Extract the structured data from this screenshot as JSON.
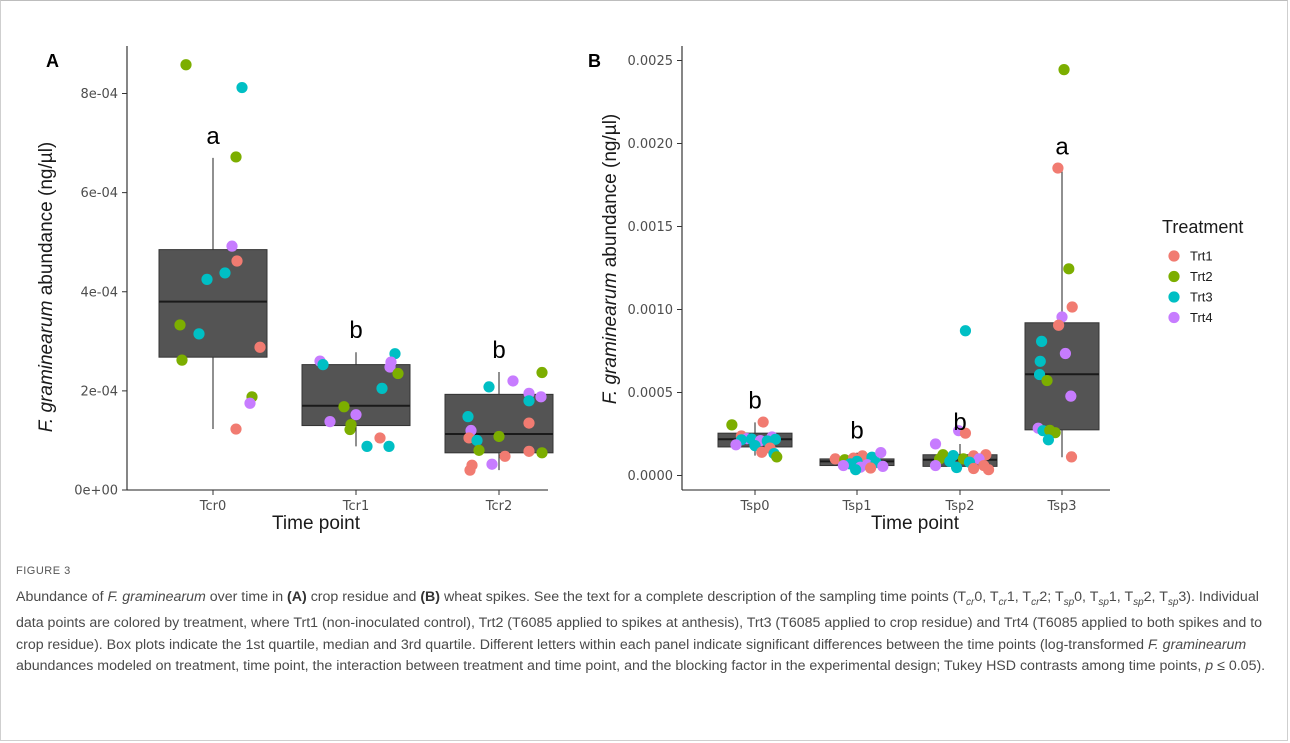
{
  "chart_data": [
    {
      "type": "box",
      "panel_label": "A",
      "ylabel_italic": "F. graminearum",
      "ylabel_rest": " abundance (ng/µl)",
      "xlabel": "Time point",
      "ylim": [
        0,
        0.0009
      ],
      "yticks": [
        0,
        0.0002,
        0.0004,
        0.0006,
        0.0008
      ],
      "ytick_labels": [
        "0e+00",
        "2e-04",
        "4e-04",
        "6e-04",
        "8e-04"
      ],
      "categories": [
        "Tcr0",
        "Tcr1",
        "Tcr2"
      ],
      "boxes": [
        {
          "q1": 0.000268,
          "median": 0.00038,
          "q3": 0.000485,
          "whisker_low": 0.000123,
          "whisker_high": 0.00067
        },
        {
          "q1": 0.00013,
          "median": 0.00017,
          "q3": 0.000253,
          "whisker_low": 8.8e-05,
          "whisker_high": 0.000278
        },
        {
          "q1": 7.5e-05,
          "median": 0.000113,
          "q3": 0.000193,
          "whisker_low": 4e-05,
          "whisker_high": 0.000238
        }
      ],
      "significance": [
        "a",
        "b",
        "b"
      ],
      "points": [
        {
          "cat": 0,
          "dx": -0.27,
          "y": 0.000858,
          "trt": "Trt2"
        },
        {
          "cat": 0,
          "dx": 0.29,
          "y": 0.000812,
          "trt": "Trt3"
        },
        {
          "cat": 0,
          "dx": 0.23,
          "y": 0.000672,
          "trt": "Trt2"
        },
        {
          "cat": 0,
          "dx": 0.19,
          "y": 0.000492,
          "trt": "Trt4"
        },
        {
          "cat": 0,
          "dx": 0.24,
          "y": 0.000462,
          "trt": "Trt1"
        },
        {
          "cat": 0,
          "dx": 0.12,
          "y": 0.000438,
          "trt": "Trt3"
        },
        {
          "cat": 0,
          "dx": -0.06,
          "y": 0.000425,
          "trt": "Trt3"
        },
        {
          "cat": 0,
          "dx": -0.33,
          "y": 0.000333,
          "trt": "Trt2"
        },
        {
          "cat": 0,
          "dx": -0.14,
          "y": 0.000315,
          "trt": "Trt3"
        },
        {
          "cat": 0,
          "dx": 0.47,
          "y": 0.000288,
          "trt": "Trt1"
        },
        {
          "cat": 0,
          "dx": -0.31,
          "y": 0.000262,
          "trt": "Trt2"
        },
        {
          "cat": 0,
          "dx": 0.39,
          "y": 0.000188,
          "trt": "Trt2"
        },
        {
          "cat": 0,
          "dx": 0.37,
          "y": 0.000175,
          "trt": "Trt4"
        },
        {
          "cat": 0,
          "dx": 0.23,
          "y": 0.000123,
          "trt": "Trt1"
        },
        {
          "cat": 1,
          "dx": -0.36,
          "y": 0.00026,
          "trt": "Trt4"
        },
        {
          "cat": 1,
          "dx": -0.33,
          "y": 0.000253,
          "trt": "Trt3"
        },
        {
          "cat": 1,
          "dx": 0.39,
          "y": 0.000275,
          "trt": "Trt3"
        },
        {
          "cat": 1,
          "dx": 0.35,
          "y": 0.000258,
          "trt": "Trt4"
        },
        {
          "cat": 1,
          "dx": 0.34,
          "y": 0.000248,
          "trt": "Trt4"
        },
        {
          "cat": 1,
          "dx": 0.42,
          "y": 0.000235,
          "trt": "Trt2"
        },
        {
          "cat": 1,
          "dx": 0.26,
          "y": 0.000205,
          "trt": "Trt3"
        },
        {
          "cat": 1,
          "dx": -0.12,
          "y": 0.000168,
          "trt": "Trt2"
        },
        {
          "cat": 1,
          "dx": 0.0,
          "y": 0.000152,
          "trt": "Trt4"
        },
        {
          "cat": 1,
          "dx": -0.26,
          "y": 0.000138,
          "trt": "Trt4"
        },
        {
          "cat": 1,
          "dx": -0.05,
          "y": 0.000132,
          "trt": "Trt2"
        },
        {
          "cat": 1,
          "dx": -0.06,
          "y": 0.000122,
          "trt": "Trt2"
        },
        {
          "cat": 1,
          "dx": 0.24,
          "y": 0.000105,
          "trt": "Trt1"
        },
        {
          "cat": 1,
          "dx": 0.11,
          "y": 8.8e-05,
          "trt": "Trt3"
        },
        {
          "cat": 1,
          "dx": 0.33,
          "y": 8.8e-05,
          "trt": "Trt3"
        },
        {
          "cat": 2,
          "dx": 0.43,
          "y": 0.000237,
          "trt": "Trt2"
        },
        {
          "cat": 2,
          "dx": 0.14,
          "y": 0.00022,
          "trt": "Trt4"
        },
        {
          "cat": 2,
          "dx": -0.1,
          "y": 0.000208,
          "trt": "Trt3"
        },
        {
          "cat": 2,
          "dx": 0.3,
          "y": 0.000195,
          "trt": "Trt4"
        },
        {
          "cat": 2,
          "dx": 0.42,
          "y": 0.000188,
          "trt": "Trt4"
        },
        {
          "cat": 2,
          "dx": 0.3,
          "y": 0.00018,
          "trt": "Trt3"
        },
        {
          "cat": 2,
          "dx": -0.31,
          "y": 0.000148,
          "trt": "Trt3"
        },
        {
          "cat": 2,
          "dx": 0.3,
          "y": 0.000135,
          "trt": "Trt1"
        },
        {
          "cat": 2,
          "dx": -0.28,
          "y": 0.00012,
          "trt": "Trt4"
        },
        {
          "cat": 2,
          "dx": -0.3,
          "y": 0.000105,
          "trt": "Trt1"
        },
        {
          "cat": 2,
          "dx": 0.0,
          "y": 0.000108,
          "trt": "Trt2"
        },
        {
          "cat": 2,
          "dx": -0.22,
          "y": 0.0001,
          "trt": "Trt3"
        },
        {
          "cat": 2,
          "dx": -0.2,
          "y": 8e-05,
          "trt": "Trt2"
        },
        {
          "cat": 2,
          "dx": 0.3,
          "y": 7.8e-05,
          "trt": "Trt1"
        },
        {
          "cat": 2,
          "dx": 0.43,
          "y": 7.5e-05,
          "trt": "Trt2"
        },
        {
          "cat": 2,
          "dx": 0.06,
          "y": 6.8e-05,
          "trt": "Trt1"
        },
        {
          "cat": 2,
          "dx": -0.07,
          "y": 5.2e-05,
          "trt": "Trt4"
        },
        {
          "cat": 2,
          "dx": -0.27,
          "y": 5e-05,
          "trt": "Trt1"
        },
        {
          "cat": 2,
          "dx": -0.29,
          "y": 4e-05,
          "trt": "Trt1"
        }
      ]
    },
    {
      "type": "box",
      "panel_label": "B",
      "ylabel_italic": "F. graminearum",
      "ylabel_rest": " abundance (ng/µl)",
      "xlabel": "Time point",
      "ylim": [
        -7e-05,
        0.00255
      ],
      "yticks": [
        0,
        0.0005,
        0.001,
        0.0015,
        0.002,
        0.0025
      ],
      "ytick_labels": [
        "0.0000",
        "0.0005",
        "0.0010",
        "0.0015",
        "0.0020",
        "0.0025"
      ],
      "categories": [
        "Tsp0",
        "Tsp1",
        "Tsp2",
        "Tsp3"
      ],
      "boxes": [
        {
          "q1": 0.000172,
          "median": 0.000218,
          "q3": 0.000255,
          "whisker_low": 0.00012,
          "whisker_high": 0.00032
        },
        {
          "q1": 6e-05,
          "median": 8.5e-05,
          "q3": 0.0001,
          "whisker_low": 3e-05,
          "whisker_high": 0.000138
        },
        {
          "q1": 5.5e-05,
          "median": 9.5e-05,
          "q3": 0.000125,
          "whisker_low": 2e-05,
          "whisker_high": 0.00019
        },
        {
          "q1": 0.000275,
          "median": 0.00061,
          "q3": 0.00092,
          "whisker_low": 0.00011,
          "whisker_high": 0.00185
        }
      ],
      "significance": [
        "b",
        "b",
        "b",
        "a"
      ],
      "points": [
        {
          "cat": 0,
          "dx": -0.34,
          "y": 0.000305,
          "trt": "Trt2"
        },
        {
          "cat": 0,
          "dx": 0.12,
          "y": 0.000322,
          "trt": "Trt1"
        },
        {
          "cat": 0,
          "dx": -0.2,
          "y": 0.000238,
          "trt": "Trt1"
        },
        {
          "cat": 0,
          "dx": -0.12,
          "y": 0.000222,
          "trt": "Trt4"
        },
        {
          "cat": 0,
          "dx": -0.2,
          "y": 0.000215,
          "trt": "Trt3"
        },
        {
          "cat": 0,
          "dx": -0.05,
          "y": 0.00022,
          "trt": "Trt3"
        },
        {
          "cat": 0,
          "dx": 0.08,
          "y": 0.00021,
          "trt": "Trt4"
        },
        {
          "cat": 0,
          "dx": 0.25,
          "y": 0.000232,
          "trt": "Trt4"
        },
        {
          "cat": 0,
          "dx": 0.3,
          "y": 0.000218,
          "trt": "Trt3"
        },
        {
          "cat": 0,
          "dx": 0.18,
          "y": 0.000208,
          "trt": "Trt3"
        },
        {
          "cat": 0,
          "dx": -0.28,
          "y": 0.000185,
          "trt": "Trt4"
        },
        {
          "cat": 0,
          "dx": 0.0,
          "y": 0.00018,
          "trt": "Trt3"
        },
        {
          "cat": 0,
          "dx": 0.22,
          "y": 0.000165,
          "trt": "Trt1"
        },
        {
          "cat": 0,
          "dx": 0.1,
          "y": 0.00014,
          "trt": "Trt1"
        },
        {
          "cat": 0,
          "dx": 0.28,
          "y": 0.000132,
          "trt": "Trt3"
        },
        {
          "cat": 0,
          "dx": 0.32,
          "y": 0.000112,
          "trt": "Trt2"
        },
        {
          "cat": 1,
          "dx": -0.32,
          "y": 0.0001,
          "trt": "Trt1"
        },
        {
          "cat": 1,
          "dx": -0.18,
          "y": 9.5e-05,
          "trt": "Trt2"
        },
        {
          "cat": 1,
          "dx": -0.05,
          "y": 0.000105,
          "trt": "Trt1"
        },
        {
          "cat": 1,
          "dx": 0.08,
          "y": 0.000118,
          "trt": "Trt1"
        },
        {
          "cat": 1,
          "dx": 0.22,
          "y": 0.00011,
          "trt": "Trt3"
        },
        {
          "cat": 1,
          "dx": 0.35,
          "y": 0.000138,
          "trt": "Trt4"
        },
        {
          "cat": 1,
          "dx": 0.0,
          "y": 8.5e-05,
          "trt": "Trt3"
        },
        {
          "cat": 1,
          "dx": -0.1,
          "y": 7e-05,
          "trt": "Trt3"
        },
        {
          "cat": 1,
          "dx": 0.15,
          "y": 6.5e-05,
          "trt": "Trt4"
        },
        {
          "cat": 1,
          "dx": 0.28,
          "y": 7.8e-05,
          "trt": "Trt3"
        },
        {
          "cat": 1,
          "dx": -0.2,
          "y": 6e-05,
          "trt": "Trt4"
        },
        {
          "cat": 1,
          "dx": 0.05,
          "y": 5e-05,
          "trt": "Trt4"
        },
        {
          "cat": 1,
          "dx": 0.2,
          "y": 4.5e-05,
          "trt": "Trt1"
        },
        {
          "cat": 1,
          "dx": 0.38,
          "y": 5.5e-05,
          "trt": "Trt4"
        },
        {
          "cat": 1,
          "dx": -0.02,
          "y": 3.5e-05,
          "trt": "Trt3"
        },
        {
          "cat": 2,
          "dx": 0.08,
          "y": 0.000872,
          "trt": "Trt3"
        },
        {
          "cat": 2,
          "dx": -0.02,
          "y": 0.00027,
          "trt": "Trt4"
        },
        {
          "cat": 2,
          "dx": 0.08,
          "y": 0.000255,
          "trt": "Trt1"
        },
        {
          "cat": 2,
          "dx": -0.36,
          "y": 0.00019,
          "trt": "Trt4"
        },
        {
          "cat": 2,
          "dx": 0.38,
          "y": 0.000125,
          "trt": "Trt1"
        },
        {
          "cat": 2,
          "dx": -0.25,
          "y": 0.000125,
          "trt": "Trt2"
        },
        {
          "cat": 2,
          "dx": -0.1,
          "y": 0.00012,
          "trt": "Trt3"
        },
        {
          "cat": 2,
          "dx": 0.2,
          "y": 0.000118,
          "trt": "Trt1"
        },
        {
          "cat": 2,
          "dx": -0.3,
          "y": 0.0001,
          "trt": "Trt2"
        },
        {
          "cat": 2,
          "dx": 0.05,
          "y": 0.0001,
          "trt": "Trt2"
        },
        {
          "cat": 2,
          "dx": 0.28,
          "y": 0.0001,
          "trt": "Trt4"
        },
        {
          "cat": 2,
          "dx": -0.15,
          "y": 8.5e-05,
          "trt": "Trt3"
        },
        {
          "cat": 2,
          "dx": 0.14,
          "y": 8e-05,
          "trt": "Trt3"
        },
        {
          "cat": 2,
          "dx": -0.36,
          "y": 6e-05,
          "trt": "Trt4"
        },
        {
          "cat": 2,
          "dx": 0.35,
          "y": 6e-05,
          "trt": "Trt1"
        },
        {
          "cat": 2,
          "dx": -0.05,
          "y": 4.8e-05,
          "trt": "Trt3"
        },
        {
          "cat": 2,
          "dx": 0.2,
          "y": 4.2e-05,
          "trt": "Trt1"
        },
        {
          "cat": 2,
          "dx": 0.42,
          "y": 3.5e-05,
          "trt": "Trt1"
        },
        {
          "cat": 3,
          "dx": 0.03,
          "y": 0.002445,
          "trt": "Trt2"
        },
        {
          "cat": 3,
          "dx": -0.06,
          "y": 0.001852,
          "trt": "Trt1"
        },
        {
          "cat": 3,
          "dx": 0.1,
          "y": 0.001245,
          "trt": "Trt2"
        },
        {
          "cat": 3,
          "dx": 0.15,
          "y": 0.001015,
          "trt": "Trt1"
        },
        {
          "cat": 3,
          "dx": 0.0,
          "y": 0.000955,
          "trt": "Trt4"
        },
        {
          "cat": 3,
          "dx": -0.05,
          "y": 0.000905,
          "trt": "Trt1"
        },
        {
          "cat": 3,
          "dx": -0.3,
          "y": 0.000808,
          "trt": "Trt3"
        },
        {
          "cat": 3,
          "dx": 0.05,
          "y": 0.000735,
          "trt": "Trt4"
        },
        {
          "cat": 3,
          "dx": -0.32,
          "y": 0.000688,
          "trt": "Trt3"
        },
        {
          "cat": 3,
          "dx": -0.33,
          "y": 0.000608,
          "trt": "Trt3"
        },
        {
          "cat": 3,
          "dx": -0.22,
          "y": 0.000572,
          "trt": "Trt2"
        },
        {
          "cat": 3,
          "dx": 0.13,
          "y": 0.000478,
          "trt": "Trt4"
        },
        {
          "cat": 3,
          "dx": -0.35,
          "y": 0.000285,
          "trt": "Trt4"
        },
        {
          "cat": 3,
          "dx": -0.28,
          "y": 0.00027,
          "trt": "Trt3"
        },
        {
          "cat": 3,
          "dx": -0.18,
          "y": 0.000272,
          "trt": "Trt2"
        },
        {
          "cat": 3,
          "dx": -0.1,
          "y": 0.000258,
          "trt": "Trt2"
        },
        {
          "cat": 3,
          "dx": -0.2,
          "y": 0.000215,
          "trt": "Trt3"
        },
        {
          "cat": 3,
          "dx": 0.14,
          "y": 0.000112,
          "trt": "Trt1"
        }
      ]
    }
  ],
  "legend": {
    "title": "Treatment",
    "items": [
      {
        "name": "Trt1",
        "color": "#F17B71"
      },
      {
        "name": "Trt2",
        "color": "#7CAE00"
      },
      {
        "name": "Trt3",
        "color": "#00BFC4"
      },
      {
        "name": "Trt4",
        "color": "#C77CFF"
      }
    ]
  },
  "box_fill": "#545454",
  "caption": {
    "label": "FIGURE 3",
    "segments": [
      {
        "t": "Abundance of ",
        "s": ""
      },
      {
        "t": "F. graminearum",
        "s": "i"
      },
      {
        "t": " over time in ",
        "s": ""
      },
      {
        "t": "(A)",
        "s": "b"
      },
      {
        "t": " crop residue and ",
        "s": ""
      },
      {
        "t": "(B)",
        "s": "b"
      },
      {
        "t": " wheat spikes. See the text for a complete description of the sampling time points (T",
        "s": ""
      },
      {
        "t": "cr",
        "s": "sub"
      },
      {
        "t": "0, T",
        "s": ""
      },
      {
        "t": "cr",
        "s": "sub"
      },
      {
        "t": "1, T",
        "s": ""
      },
      {
        "t": "cr",
        "s": "sub"
      },
      {
        "t": "2; T",
        "s": ""
      },
      {
        "t": "sp",
        "s": "sub"
      },
      {
        "t": "0, T",
        "s": ""
      },
      {
        "t": "sp",
        "s": "sub"
      },
      {
        "t": "1, T",
        "s": ""
      },
      {
        "t": "sp",
        "s": "sub"
      },
      {
        "t": "2, T",
        "s": ""
      },
      {
        "t": "sp",
        "s": "sub"
      },
      {
        "t": "3). Individual data points are colored by treatment, where Trt1 (non-inoculated control), Trt2 (T6085 applied to spikes at anthesis), Trt3 (T6085 applied to crop residue) and Trt4 (T6085 applied to both spikes and to crop residue). Box plots indicate the 1st quartile, median and 3rd quartile. Different letters within each panel indicate significant differences between the time points (log-transformed ",
        "s": ""
      },
      {
        "t": "F. graminearum",
        "s": "i"
      },
      {
        "t": " abundances modeled on treatment, time point, the interaction between treatment and time point, and the blocking factor in the experimental design; Tukey HSD contrasts among time points, ",
        "s": ""
      },
      {
        "t": "p",
        "s": "i"
      },
      {
        "t": " ≤ 0.05).",
        "s": ""
      }
    ]
  }
}
